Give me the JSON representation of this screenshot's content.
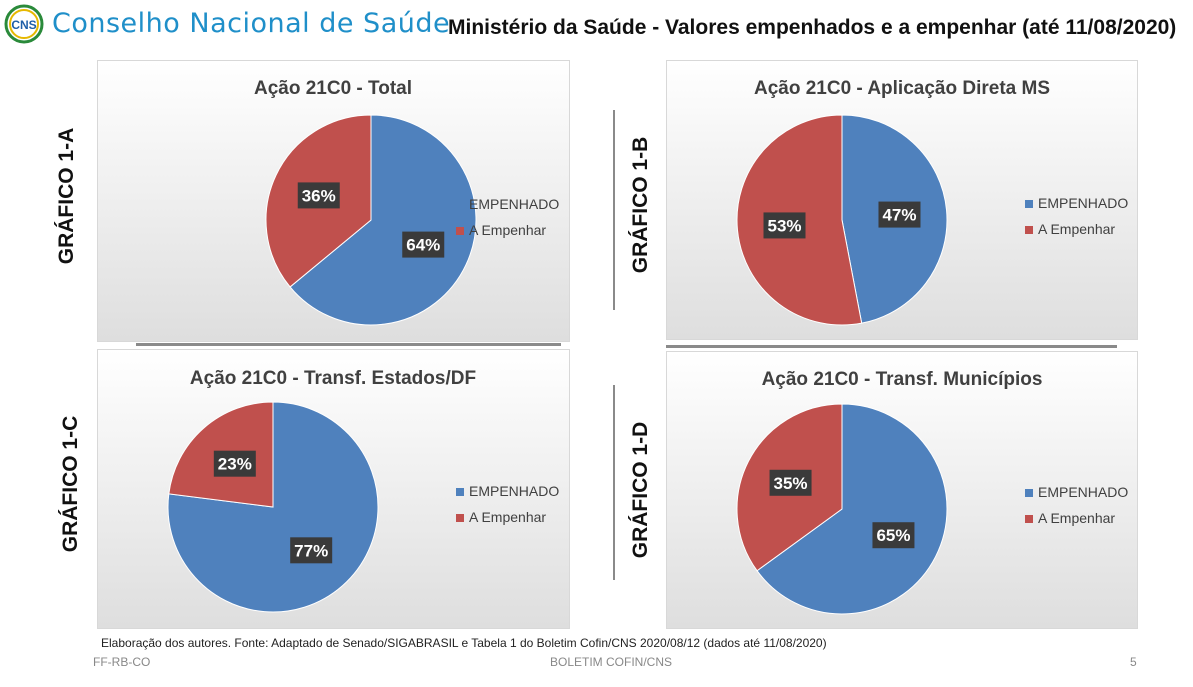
{
  "header": {
    "logo_text": "CNS",
    "org_name": "Conselho Nacional de Saúde",
    "title": "Ministério da Saúde - Valores empenhados e a empenhar (até 11/08/2020)"
  },
  "colors": {
    "empenhado": "#4f81bd",
    "a_empenhar": "#c0504d"
  },
  "chart_data": [
    {
      "type": "pie",
      "side_label": "GRÁFICO 1-A",
      "title": "Ação 21C0 - Total",
      "categories": [
        "EMPENHADO",
        "A Empenhar"
      ],
      "values": [
        64,
        36
      ],
      "labels": [
        "64%",
        "36%"
      ],
      "legend": "right"
    },
    {
      "type": "pie",
      "side_label": "GRÁFICO 1-B",
      "title": "Ação 21C0 - Aplicação Direta MS",
      "categories": [
        "EMPENHADO",
        "A Empenhar"
      ],
      "values": [
        47,
        53
      ],
      "labels": [
        "47%",
        "53%"
      ],
      "legend": "right"
    },
    {
      "type": "pie",
      "side_label": "GRÁFICO 1-C",
      "title": "Ação 21C0 - Transf. Estados/DF",
      "categories": [
        "EMPENHADO",
        "A Empenhar"
      ],
      "values": [
        77,
        23
      ],
      "labels": [
        "77%",
        "23%"
      ],
      "legend": "right"
    },
    {
      "type": "pie",
      "side_label": "GRÁFICO 1-D",
      "title": "Ação 21C0 - Transf. Municípios",
      "categories": [
        "EMPENHADO",
        "A Empenhar"
      ],
      "values": [
        65,
        35
      ],
      "labels": [
        "65%",
        "35%"
      ],
      "legend": "right"
    }
  ],
  "source": "Elaboração dos autores. Fonte: Adaptado de Senado/SIGABRASIL e Tabela 1 do Boletim Cofin/CNS 2020/08/12  (dados até 11/08/2020)",
  "footer": {
    "left": "FF-RB-CO",
    "center": "BOLETIM COFIN/CNS",
    "right": "5"
  }
}
